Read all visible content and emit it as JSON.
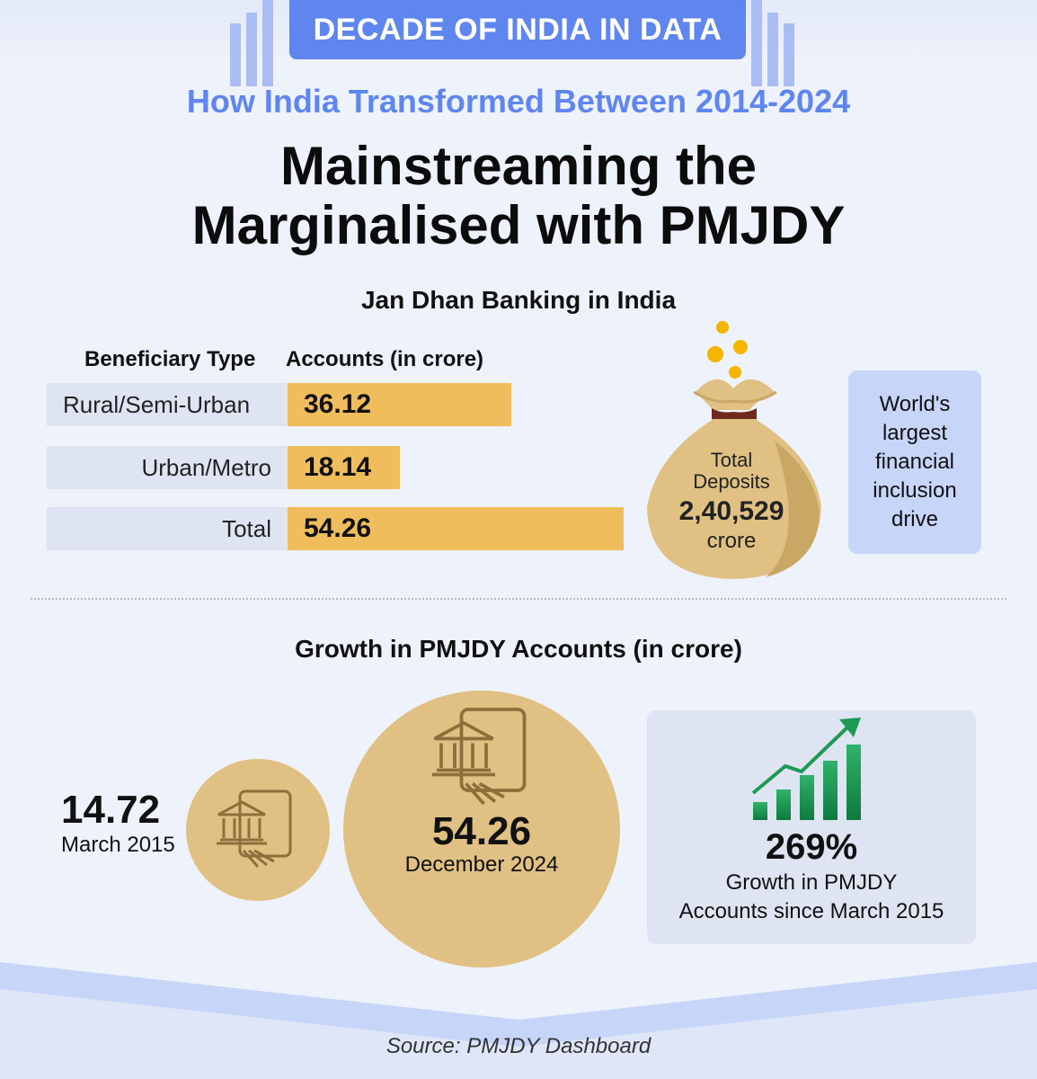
{
  "header": {
    "banner": "DECADE OF INDIA IN DATA",
    "subtitle": "How India Transformed Between 2014-2024",
    "title_line1": "Mainstreaming the",
    "title_line2": "Marginalised with PMJDY"
  },
  "banking": {
    "section_title": "Jan Dhan Banking in India",
    "col_beneficiary": "Beneficiary Type",
    "col_accounts": "Accounts (in crore)"
  },
  "deposits": {
    "label_line1": "Total",
    "label_line2": "Deposits",
    "value": "2,40,529",
    "unit": "crore"
  },
  "info_box": {
    "text_lines": [
      "World's",
      "largest",
      "financial",
      "inclusion",
      "drive"
    ]
  },
  "growth": {
    "section_title": "Growth in PMJDY Accounts (in crore)",
    "percent": "269%",
    "desc_line1": "Growth in PMJDY",
    "desc_line2": "Accounts since March 2015"
  },
  "source": "Source: PMJDY Dashboard",
  "colors": {
    "accent_blue": "#5f86ee",
    "bar_gold": "#f0bd5c",
    "circle_gold": "#e0c183",
    "chart_green": "#1e9a55"
  },
  "chart_data": [
    {
      "type": "bar",
      "orientation": "horizontal",
      "title": "Jan Dhan Banking in India",
      "xlabel": "Accounts (in crore)",
      "ylabel": "Beneficiary Type",
      "categories": [
        "Rural/Semi-Urban",
        "Urban/Metro",
        "Total"
      ],
      "values": [
        36.12,
        18.14,
        54.26
      ],
      "value_labels": [
        "36.12",
        "18.14",
        "54.26"
      ],
      "xlim": [
        0,
        54.26
      ]
    },
    {
      "type": "bubble",
      "title": "Growth in PMJDY Accounts (in crore)",
      "categories": [
        "March 2015",
        "December 2024"
      ],
      "values": [
        14.72,
        54.26
      ],
      "value_labels": [
        "14.72",
        "54.26"
      ]
    }
  ]
}
